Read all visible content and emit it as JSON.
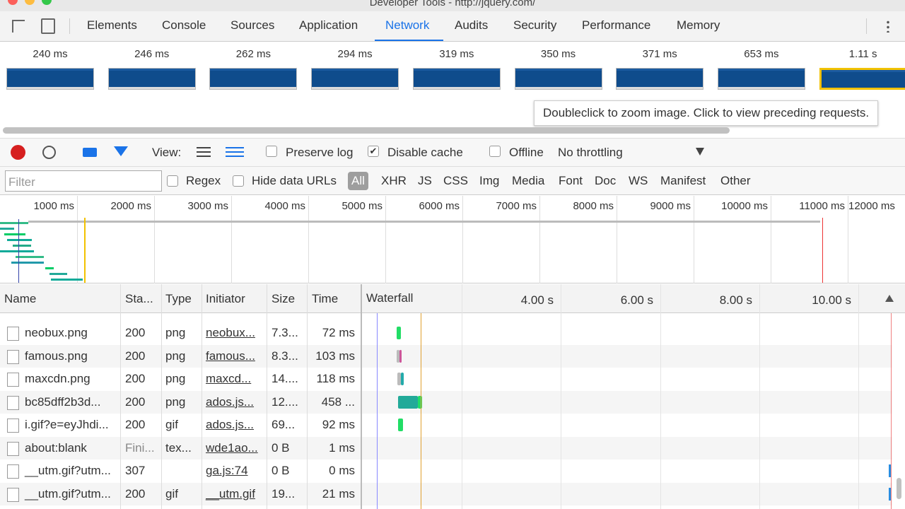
{
  "window_title": "Developer Tools - http://jquery.com/",
  "tabs": [
    "Elements",
    "Console",
    "Sources",
    "Application",
    "Network",
    "Audits",
    "Security",
    "Performance",
    "Memory"
  ],
  "active_tab": 4,
  "filmstrip": {
    "times": [
      "240 ms",
      "246 ms",
      "262 ms",
      "294 ms",
      "319 ms",
      "350 ms",
      "371 ms",
      "653 ms",
      "1.11 s"
    ],
    "tooltip": "Doubleclick to zoom image. Click to view preceding requests."
  },
  "toolbar": {
    "view_label": "View:",
    "checkboxes": [
      {
        "label": "Preserve log",
        "checked": false
      },
      {
        "label": "Disable cache",
        "checked": true
      },
      {
        "label": "Offline",
        "checked": false
      }
    ],
    "throttling": "No throttling"
  },
  "filter": {
    "placeholder": "Filter",
    "regex": "Regex",
    "hide_data_urls": "Hide data URLs",
    "types": [
      "All",
      "XHR",
      "JS",
      "CSS",
      "Img",
      "Media",
      "Font",
      "Doc",
      "WS",
      "Manifest",
      "Other"
    ]
  },
  "overview": {
    "ticks": [
      "1000 ms",
      "2000 ms",
      "3000 ms",
      "4000 ms",
      "5000 ms",
      "6000 ms",
      "7000 ms",
      "8000 ms",
      "9000 ms",
      "10000 ms",
      "11000 ms",
      "12000 ms"
    ]
  },
  "table": {
    "columns": [
      "Name",
      "Sta...",
      "Type",
      "Initiator",
      "Size",
      "Time"
    ],
    "waterfall": {
      "label": "Waterfall",
      "ticks": [
        "4.00 s",
        "6.00 s",
        "8.00 s",
        "10.00 s"
      ]
    },
    "rows": [
      [
        "neobux.png",
        "200",
        "png",
        "neobux...",
        "7.3...",
        "72 ms"
      ],
      [
        "famous.png",
        "200",
        "png",
        "famous...",
        "8.3...",
        "103 ms"
      ],
      [
        "maxcdn.png",
        "200",
        "png",
        "maxcd...",
        "14....",
        "118 ms"
      ],
      [
        "bc85dff2b3d...",
        "200",
        "png",
        "ados.js...",
        "12....",
        "458 ..."
      ],
      [
        "i.gif?e=eyJhdi...",
        "200",
        "gif",
        "ados.js...",
        "69...",
        "92 ms"
      ],
      [
        "about:blank",
        "Fini...",
        "tex...",
        "wde1ao...",
        "0 B",
        "1 ms"
      ],
      [
        "__utm.gif?utm...",
        "307",
        null,
        "ga.js:74",
        "0 B",
        "0 ms"
      ],
      [
        "__utm.gif?utm...",
        "200",
        "gif",
        "__utm.gif",
        "19...",
        "21 ms"
      ]
    ]
  }
}
